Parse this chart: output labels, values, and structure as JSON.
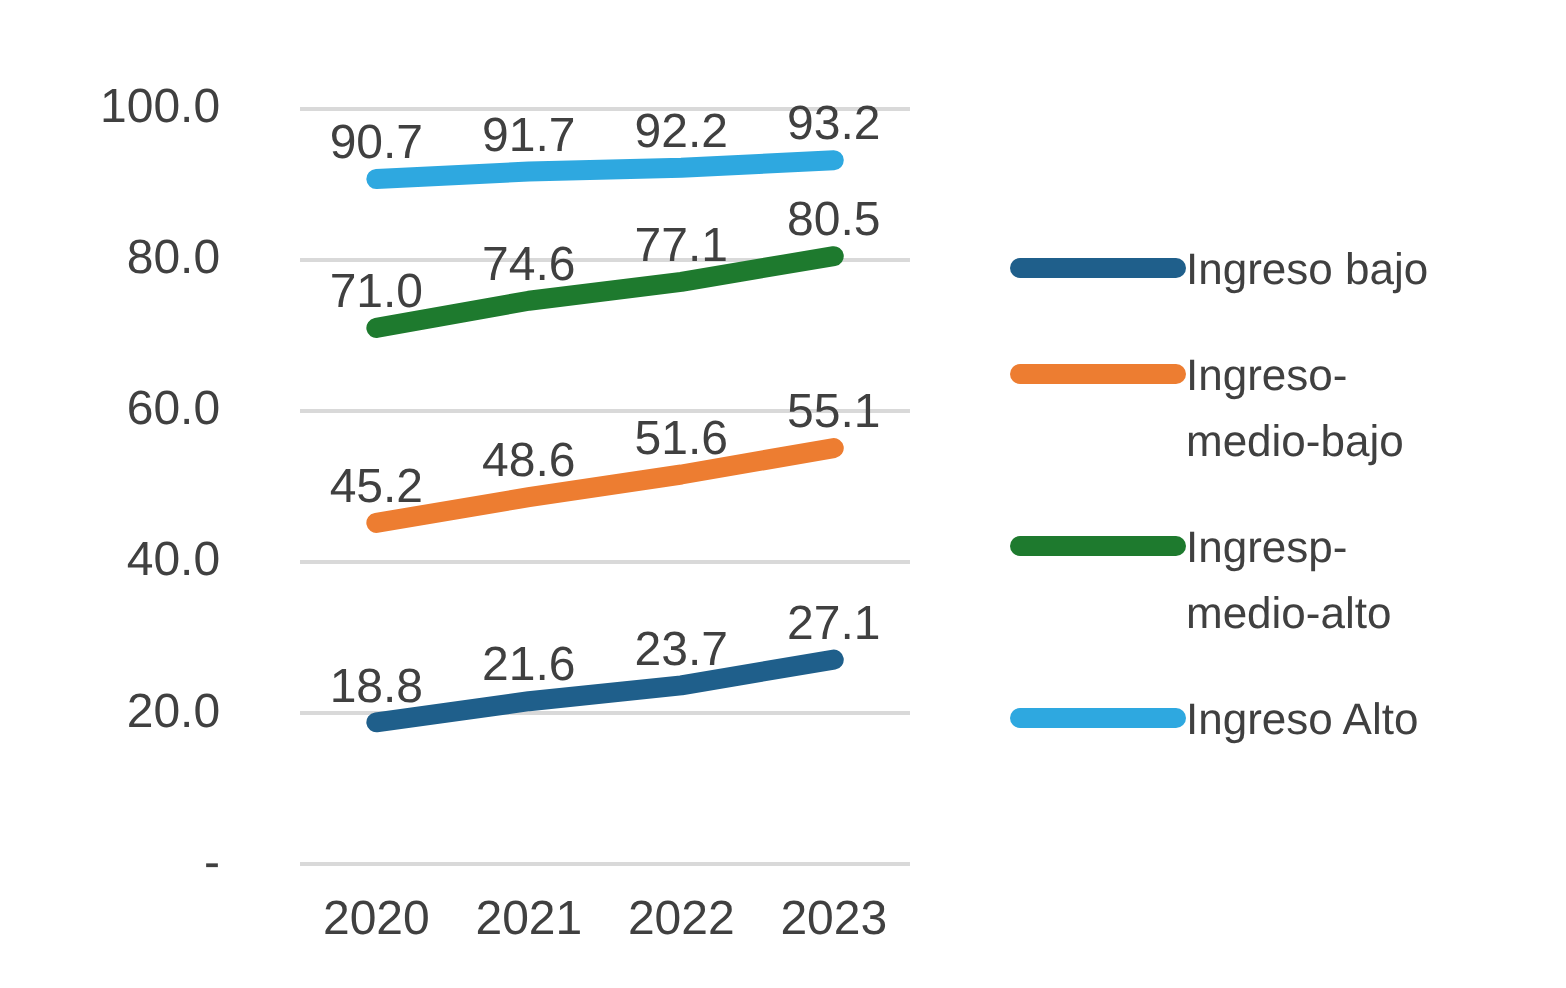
{
  "chart_data": {
    "type": "line",
    "categories": [
      "2020",
      "2021",
      "2022",
      "2023"
    ],
    "series": [
      {
        "name": "Ingreso bajo",
        "color": "#1f5f8b",
        "values": [
          18.8,
          21.6,
          23.7,
          27.1
        ],
        "value_labels": [
          "18.8",
          "21.6",
          "23.7",
          "27.1"
        ]
      },
      {
        "name": "Ingreso-medio-bajo",
        "color": "#ed7d31",
        "values": [
          45.2,
          48.6,
          51.6,
          55.1
        ],
        "value_labels": [
          "45.2",
          "48.6",
          "51.6",
          "55.1"
        ]
      },
      {
        "name": "Ingresp-medio-alto",
        "color": "#1e7a2e",
        "values": [
          71.0,
          74.6,
          77.1,
          80.5
        ],
        "value_labels": [
          "71.0",
          "74.6",
          "77.1",
          "80.5"
        ]
      },
      {
        "name": "Ingreso Alto",
        "color": "#2ea8e0",
        "values": [
          90.7,
          91.7,
          92.2,
          93.2
        ],
        "value_labels": [
          "90.7",
          "91.7",
          "92.2",
          "93.2"
        ]
      }
    ],
    "ylim": [
      0,
      100
    ],
    "yticks": [
      {
        "value": 0,
        "label": "-"
      },
      {
        "value": 20,
        "label": "20.0"
      },
      {
        "value": 40,
        "label": "40.0"
      },
      {
        "value": 60,
        "label": "60.0"
      },
      {
        "value": 80,
        "label": "80.0"
      },
      {
        "value": 100,
        "label": "100.0"
      }
    ],
    "grid": "y",
    "legend": "right",
    "marker": "none",
    "line_style": "solid"
  }
}
